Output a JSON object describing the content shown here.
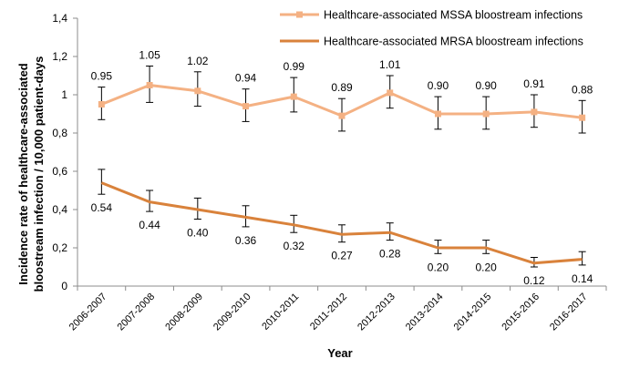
{
  "chart_data": {
    "type": "line",
    "xlabel": "Year",
    "ylabel_line1": "Incidence rate of healthcare-associated",
    "ylabel_line2": "bloostream infection / 10,000 patient-days",
    "ylim": [
      0,
      1.4
    ],
    "yticks": [
      "0",
      "0,2",
      "0,4",
      "0,6",
      "0,8",
      "1",
      "1,2",
      "1,4"
    ],
    "ytick_values": [
      0,
      0.2,
      0.4,
      0.6,
      0.8,
      1.0,
      1.2,
      1.4
    ],
    "grid": false,
    "legend_position": "top-right",
    "categories": [
      "2006-2007",
      "2007-2008",
      "2008-2009",
      "2009-2010",
      "2010-2011",
      "2011-2012",
      "2012-2013",
      "2013-2014",
      "2014-2015",
      "2015-2016",
      "2016-2017"
    ],
    "series": [
      {
        "name": "Healthcare-associated MSSA bloostream infections",
        "color": "#F4B183",
        "marker": "square",
        "values": [
          0.95,
          1.05,
          1.02,
          0.94,
          0.99,
          0.89,
          1.01,
          0.9,
          0.9,
          0.91,
          0.88
        ],
        "labels": [
          "0.95",
          "1.05",
          "1.02",
          "0.94",
          "0.99",
          "0.89",
          "1.01",
          "0.90",
          "0.90",
          "0.91",
          "0.88"
        ],
        "ci_low": [
          0.87,
          0.96,
          0.94,
          0.86,
          0.91,
          0.81,
          0.93,
          0.82,
          0.82,
          0.83,
          0.8
        ],
        "ci_high": [
          1.04,
          1.15,
          1.12,
          1.03,
          1.09,
          0.98,
          1.1,
          0.99,
          0.99,
          1.0,
          0.97
        ],
        "label_position": "above"
      },
      {
        "name": "Healthcare-associated MRSA bloostream infections",
        "color": "#D9823B",
        "marker": "none",
        "values": [
          0.54,
          0.44,
          0.4,
          0.36,
          0.32,
          0.27,
          0.28,
          0.2,
          0.2,
          0.12,
          0.14
        ],
        "labels": [
          "0.54",
          "0.44",
          "0.40",
          "0.36",
          "0.32",
          "0.27",
          "0.28",
          "0.20",
          "0.20",
          "0.12",
          "0.14"
        ],
        "ci_low": [
          0.48,
          0.39,
          0.35,
          0.31,
          0.28,
          0.23,
          0.24,
          0.17,
          0.17,
          0.1,
          0.11
        ],
        "ci_high": [
          0.61,
          0.5,
          0.46,
          0.42,
          0.37,
          0.32,
          0.33,
          0.24,
          0.24,
          0.15,
          0.18
        ],
        "label_position": "below"
      }
    ]
  }
}
